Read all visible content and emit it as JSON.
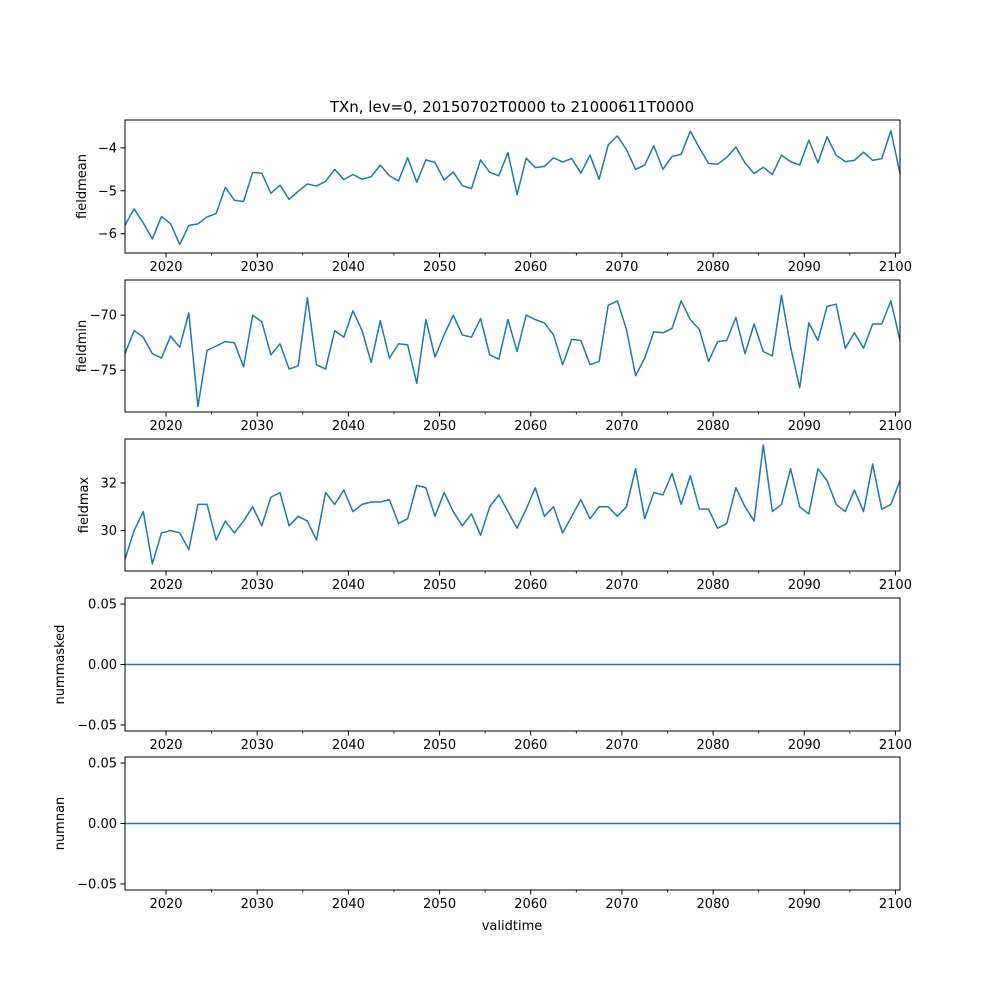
{
  "title": "TXn, lev=0, 20150702T0000 to 21000611T0000",
  "xlabel": "validtime",
  "colors": {
    "line": "#1f77b4",
    "axis": "#000000"
  },
  "chart_data": [
    {
      "type": "line",
      "name": "fieldmean",
      "ylabel": "fieldmean",
      "xlim": [
        2015.5,
        2100.5
      ],
      "ylim": [
        -6.45,
        -3.35
      ],
      "yticks": [
        -6,
        -5,
        -4
      ],
      "ytick_labels": [
        "−6",
        "−5",
        "−4"
      ],
      "xticks": [
        2020,
        2030,
        2040,
        2050,
        2060,
        2070,
        2080,
        2090,
        2100
      ],
      "xtick_labels": [
        "2020",
        "2030",
        "2040",
        "2050",
        "2060",
        "2070",
        "2080",
        "2090",
        "2100"
      ],
      "x_start": 2015.5,
      "x_step": 1,
      "values": [
        -5.8,
        -5.42,
        -5.75,
        -6.12,
        -5.6,
        -5.77,
        -6.25,
        -5.81,
        -5.77,
        -5.61,
        -5.53,
        -4.92,
        -5.22,
        -5.25,
        -4.57,
        -4.59,
        -5.06,
        -4.87,
        -5.2,
        -5.01,
        -4.84,
        -4.89,
        -4.78,
        -4.5,
        -4.74,
        -4.62,
        -4.73,
        -4.67,
        -4.4,
        -4.65,
        -4.77,
        -4.23,
        -4.8,
        -4.28,
        -4.34,
        -4.75,
        -4.56,
        -4.88,
        -4.95,
        -4.28,
        -4.57,
        -4.65,
        -4.11,
        -5.09,
        -4.24,
        -4.46,
        -4.43,
        -4.23,
        -4.33,
        -4.25,
        -4.59,
        -4.17,
        -4.73,
        -3.93,
        -3.72,
        -4.04,
        -4.5,
        -4.4,
        -3.95,
        -4.5,
        -4.2,
        -4.15,
        -3.61,
        -4.0,
        -4.36,
        -4.38,
        -4.22,
        -3.98,
        -4.35,
        -4.6,
        -4.45,
        -4.62,
        -4.17,
        -4.32,
        -4.4,
        -3.82,
        -4.35,
        -3.74,
        -4.17,
        -4.32,
        -4.29,
        -4.1,
        -4.29,
        -4.25,
        -3.6,
        -4.6
      ]
    },
    {
      "type": "line",
      "name": "fieldmin",
      "ylabel": "fieldmin",
      "xlim": [
        2015.5,
        2100.5
      ],
      "ylim": [
        -78.8,
        -66.8
      ],
      "yticks": [
        -75,
        -70
      ],
      "ytick_labels": [
        "−75",
        "−70"
      ],
      "xticks": [
        2020,
        2030,
        2040,
        2050,
        2060,
        2070,
        2080,
        2090,
        2100
      ],
      "xtick_labels": [
        "2020",
        "2030",
        "2040",
        "2050",
        "2060",
        "2070",
        "2080",
        "2090",
        "2100"
      ],
      "x_start": 2015.5,
      "x_step": 1,
      "values": [
        -73.5,
        -71.4,
        -72.0,
        -73.5,
        -73.9,
        -71.9,
        -72.9,
        -69.8,
        -78.3,
        -73.2,
        -72.8,
        -72.4,
        -72.5,
        -74.7,
        -70.0,
        -70.6,
        -73.6,
        -72.6,
        -74.9,
        -74.6,
        -68.4,
        -74.5,
        -74.9,
        -71.4,
        -72.0,
        -69.6,
        -71.4,
        -74.3,
        -70.5,
        -73.9,
        -72.6,
        -72.7,
        -76.2,
        -70.4,
        -73.8,
        -71.8,
        -70.0,
        -71.8,
        -72.0,
        -70.3,
        -73.6,
        -74.0,
        -70.4,
        -73.3,
        -70.0,
        -70.4,
        -70.7,
        -71.8,
        -74.5,
        -72.2,
        -72.3,
        -74.5,
        -74.2,
        -69.1,
        -68.7,
        -71.3,
        -75.5,
        -73.9,
        -71.5,
        -71.6,
        -71.2,
        -68.7,
        -70.4,
        -71.3,
        -74.2,
        -72.4,
        -72.3,
        -70.2,
        -73.5,
        -70.8,
        -73.3,
        -73.7,
        -68.2,
        -72.9,
        -76.6,
        -70.7,
        -72.3,
        -69.2,
        -69.0,
        -73.0,
        -71.6,
        -73.0,
        -70.8,
        -70.8,
        -68.7,
        -72.3
      ]
    },
    {
      "type": "line",
      "name": "fieldmax",
      "ylabel": "fieldmax",
      "xlim": [
        2015.5,
        2100.5
      ],
      "ylim": [
        28.3,
        33.85
      ],
      "yticks": [
        30,
        32
      ],
      "ytick_labels": [
        "30",
        "32"
      ],
      "xticks": [
        2020,
        2030,
        2040,
        2050,
        2060,
        2070,
        2080,
        2090,
        2100
      ],
      "xtick_labels": [
        "2020",
        "2030",
        "2040",
        "2050",
        "2060",
        "2070",
        "2080",
        "2090",
        "2100"
      ],
      "x_start": 2015.5,
      "x_step": 1,
      "values": [
        28.8,
        30.0,
        30.8,
        28.6,
        29.9,
        30.0,
        29.9,
        29.2,
        31.1,
        31.1,
        29.6,
        30.4,
        29.9,
        30.4,
        31.0,
        30.2,
        31.4,
        31.6,
        30.2,
        30.6,
        30.4,
        29.6,
        31.6,
        31.1,
        31.7,
        30.8,
        31.1,
        31.2,
        31.2,
        31.3,
        30.3,
        30.5,
        31.9,
        31.8,
        30.6,
        31.6,
        30.8,
        30.2,
        30.7,
        29.8,
        31.0,
        31.5,
        30.8,
        30.1,
        30.9,
        31.8,
        30.6,
        31.0,
        29.9,
        30.6,
        31.3,
        30.5,
        31.0,
        31.0,
        30.6,
        31.0,
        32.6,
        30.5,
        31.6,
        31.5,
        32.4,
        31.1,
        32.3,
        30.9,
        30.9,
        30.1,
        30.3,
        31.8,
        31.0,
        30.4,
        33.6,
        30.8,
        31.1,
        32.6,
        31.0,
        30.7,
        32.6,
        32.1,
        31.1,
        30.8,
        31.7,
        30.8,
        32.8,
        30.9,
        31.1,
        32.1
      ]
    },
    {
      "type": "line",
      "name": "nummasked",
      "ylabel": "nummasked",
      "xlim": [
        2015.5,
        2100.5
      ],
      "ylim": [
        -0.055,
        0.055
      ],
      "yticks": [
        -0.05,
        0.0,
        0.05
      ],
      "ytick_labels": [
        "−0.05",
        "0.00",
        "0.05"
      ],
      "xticks": [
        2020,
        2030,
        2040,
        2050,
        2060,
        2070,
        2080,
        2090,
        2100
      ],
      "xtick_labels": [
        "2020",
        "2030",
        "2040",
        "2050",
        "2060",
        "2070",
        "2080",
        "2090",
        "2100"
      ],
      "x_start": 2015.5,
      "x_step": 85,
      "values": [
        0,
        0
      ]
    },
    {
      "type": "line",
      "name": "numnan",
      "ylabel": "numnan",
      "xlabel": "validtime",
      "xlim": [
        2015.5,
        2100.5
      ],
      "ylim": [
        -0.055,
        0.055
      ],
      "yticks": [
        -0.05,
        0.0,
        0.05
      ],
      "ytick_labels": [
        "−0.05",
        "0.00",
        "0.05"
      ],
      "xticks": [
        2020,
        2030,
        2040,
        2050,
        2060,
        2070,
        2080,
        2090,
        2100
      ],
      "xtick_labels": [
        "2020",
        "2030",
        "2040",
        "2050",
        "2060",
        "2070",
        "2080",
        "2090",
        "2100"
      ],
      "x_start": 2015.5,
      "x_step": 85,
      "values": [
        0,
        0
      ]
    }
  ]
}
